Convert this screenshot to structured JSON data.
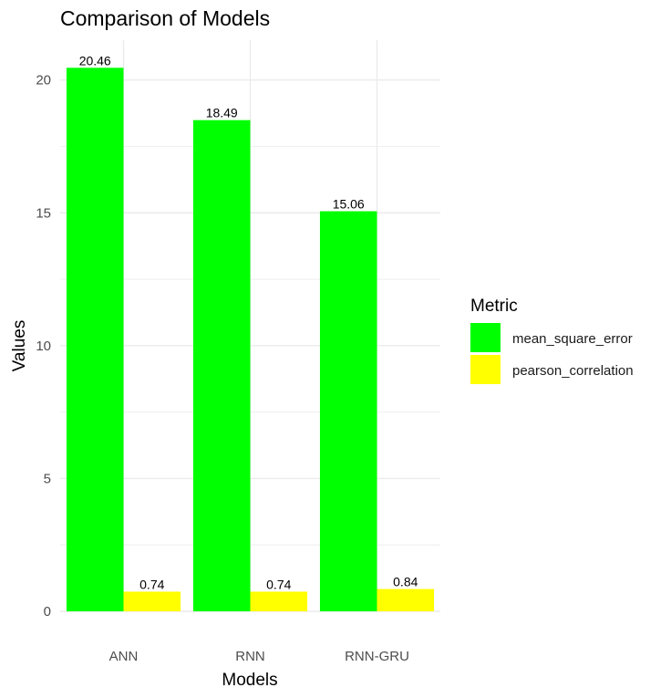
{
  "chart_data": {
    "type": "bar",
    "title": "Comparison of Models",
    "xlabel": "Models",
    "ylabel": "Values",
    "categories": [
      "ANN",
      "RNN",
      "RNN-GRU"
    ],
    "series": [
      {
        "name": "mean_square_error",
        "values": [
          20.46,
          18.49,
          15.06
        ],
        "labels": [
          "20.46",
          "18.49",
          "15.06"
        ],
        "color": "#00ff00"
      },
      {
        "name": "pearson_correlation",
        "values": [
          0.74,
          0.74,
          0.84
        ],
        "labels": [
          "0.74",
          "0.74",
          "0.84"
        ],
        "color": "#ffff00"
      }
    ],
    "ylim": [
      0,
      21.5
    ],
    "yticks": [
      0,
      5,
      10,
      15,
      20
    ],
    "grid": true,
    "legend": {
      "title": "Metric",
      "position": "right"
    }
  }
}
